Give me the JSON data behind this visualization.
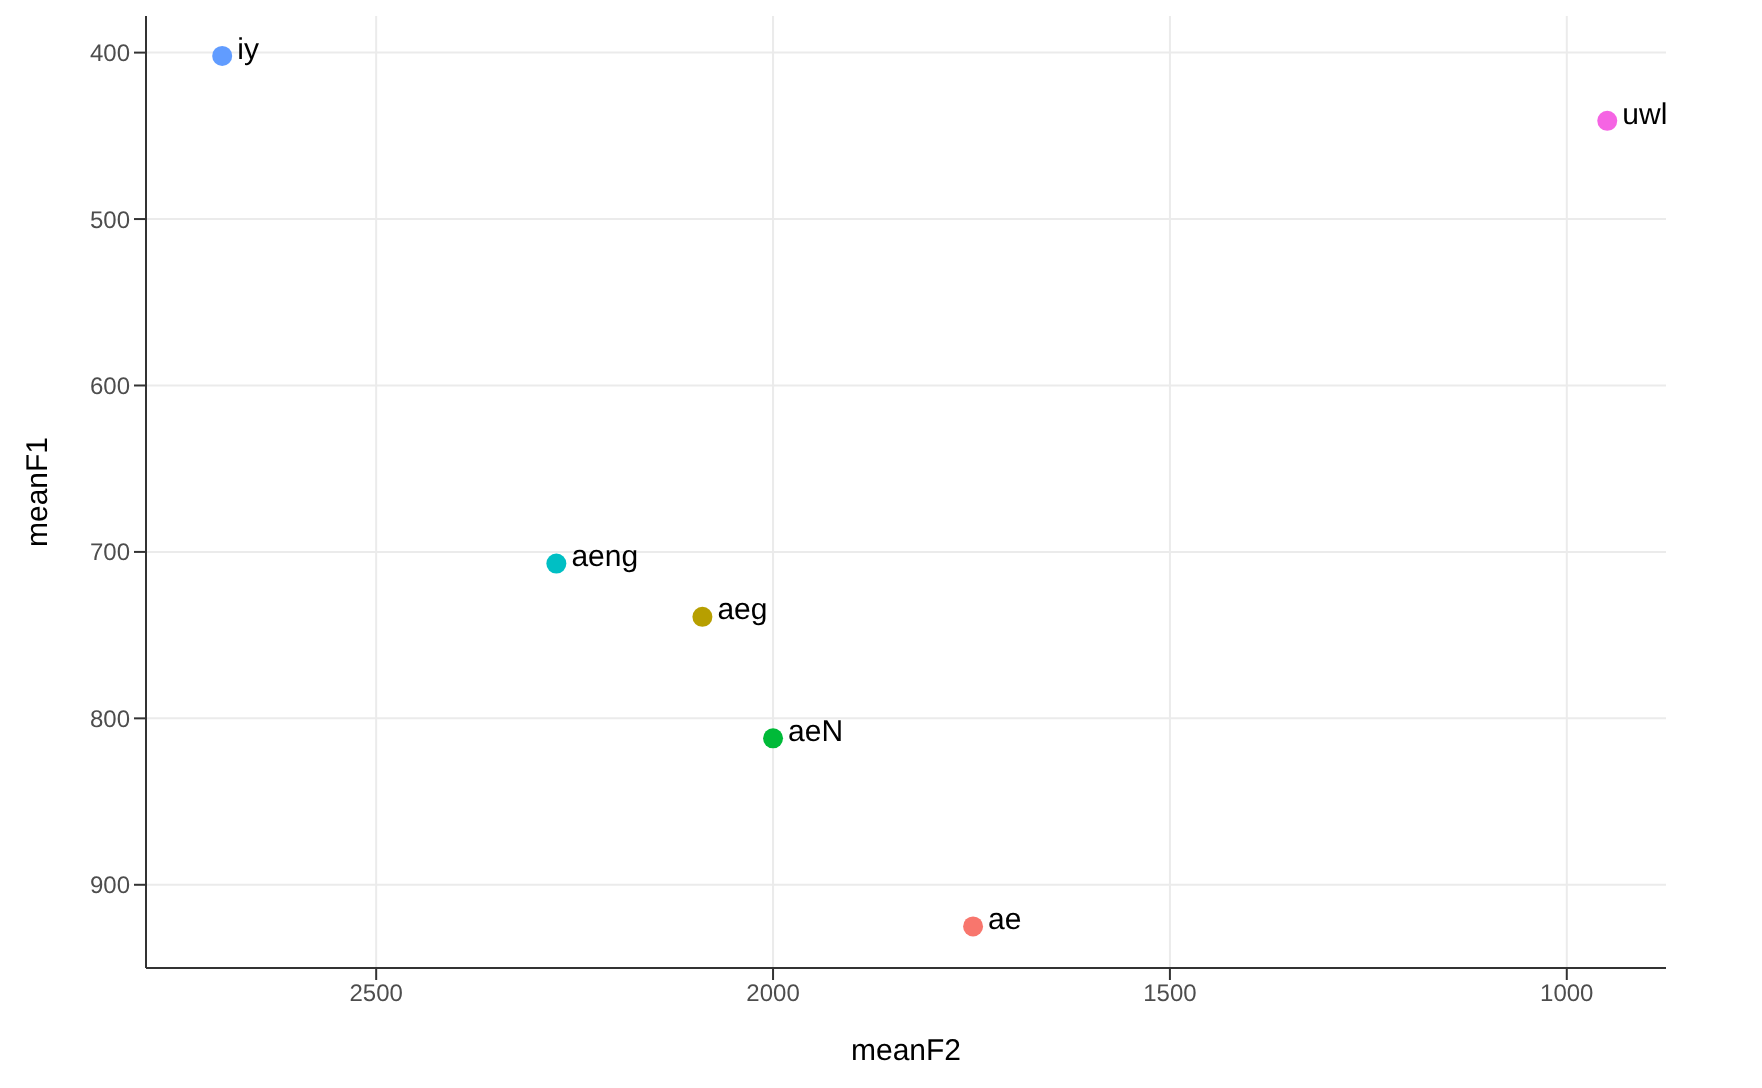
{
  "chart_data": {
    "type": "scatter",
    "xlabel": "meanF2",
    "ylabel": "meanF1",
    "xlim": [
      2790,
      875
    ],
    "ylim": [
      950,
      378
    ],
    "xticks": [
      2500,
      2000,
      1500,
      1000
    ],
    "yticks": [
      400,
      500,
      600,
      700,
      800,
      900
    ],
    "grid": true,
    "legend": false,
    "marker": "circle",
    "series": [
      {
        "name": "ae",
        "color": "#f8766d",
        "x": [
          1748
        ],
        "values": [
          925
        ]
      },
      {
        "name": "aeg",
        "color": "#b79f00",
        "x": [
          2089
        ],
        "values": [
          739
        ]
      },
      {
        "name": "aeN",
        "color": "#00ba38",
        "x": [
          2000
        ],
        "values": [
          812
        ]
      },
      {
        "name": "aeng",
        "color": "#00bfc4",
        "x": [
          2273
        ],
        "values": [
          707
        ]
      },
      {
        "name": "iy",
        "color": "#619cff",
        "x": [
          2694
        ],
        "values": [
          402
        ]
      },
      {
        "name": "uwl",
        "color": "#f564e3",
        "x": [
          949
        ],
        "values": [
          441
        ]
      }
    ]
  }
}
